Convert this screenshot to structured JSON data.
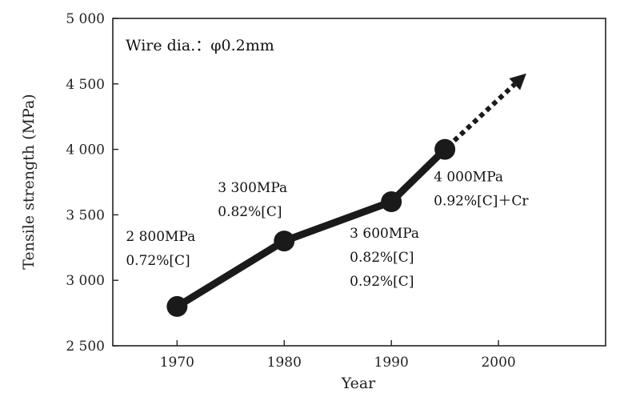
{
  "chart_data": {
    "type": "line",
    "title": "",
    "xlabel": "Year",
    "ylabel": "Tensile strength  (MPa)",
    "xlim": [
      1964,
      2010
    ],
    "ylim": [
      2500,
      5000
    ],
    "x_ticks": [
      1970,
      1980,
      1990,
      2000
    ],
    "x_tick_labels": [
      "1970",
      "1980",
      "1990",
      "2000"
    ],
    "y_ticks": [
      2500,
      3000,
      3500,
      4000,
      4500,
      5000
    ],
    "y_tick_labels": [
      "2 500",
      "3 000",
      "3 500",
      "4 000",
      "4 500",
      "5 000"
    ],
    "grid": false,
    "note": "Wire dia.：φ0.2mm",
    "series": [
      {
        "x": [
          1970,
          1980,
          1990,
          1995
        ],
        "y": [
          2800,
          3300,
          3600,
          4000
        ],
        "marker": "circle",
        "color": "#1a1a1a"
      }
    ],
    "trend_arrow": {
      "from": {
        "x": 1995,
        "y": 4000
      },
      "to": {
        "x": 2002.6,
        "y": 4580
      },
      "style": "dotted"
    },
    "annotations": [
      {
        "lines": [
          "2 800MPa",
          "0.72%[C]"
        ],
        "x": 1970,
        "y": 2800
      },
      {
        "lines": [
          "3 300MPa",
          "0.82%[C]"
        ],
        "x": 1980,
        "y": 3300
      },
      {
        "lines": [
          "3 600MPa",
          "0.82%[C]",
          "0.92%[C]"
        ],
        "x": 1990,
        "y": 3600
      },
      {
        "lines": [
          "4 000MPa",
          "0.92%[C]＋Cr"
        ],
        "x": 1995,
        "y": 4000
      }
    ]
  }
}
